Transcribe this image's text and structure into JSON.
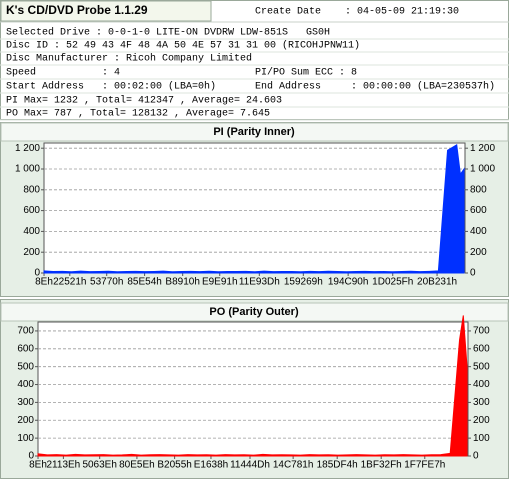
{
  "header": {
    "title": "K's CD/DVD Probe 1.1.29",
    "create_date_label": "Create Date",
    "create_date": ": 04-05-09 21:19:30",
    "lines": [
      [
        "Selected Drive : 0-0-1-0 LITE-ON DVDRW LDW-851S   GS0H"
      ],
      [
        "Disc ID : 52 49 43 4F 48 4A 50 4E 57 31 31 00 (RICOHJPNW11)"
      ],
      [
        "Disc Manufacturer : Ricoh Company Limited"
      ],
      [
        "Speed           : 4",
        "PI/PO Sum ECC : 8"
      ],
      [
        "Start Address   : 00:02:00 (LBA=0h)",
        "End Address     : 00:00:00 (LBA=230537h)"
      ],
      [
        "PI Max= 1232 , Total= 412347 , Average= 24.603"
      ],
      [
        "PO Max= 787 , Total= 128132 , Average= 7.645"
      ]
    ]
  },
  "chart_data": [
    {
      "type": "area",
      "title": "PI (Parity Inner)",
      "grid": true,
      "right_axis": true,
      "xlim": [
        0,
        2295095
      ],
      "ylim": [
        0,
        1250
      ],
      "yticks": [
        0,
        200,
        400,
        600,
        800,
        {
          "value": 1000,
          "label": "1 000"
        },
        {
          "value": 1200,
          "label": "1 200"
        }
      ],
      "xticks": [
        {
          "value": 142,
          "label": "8Eh"
        },
        {
          "value": 140577,
          "label": "22521h"
        },
        {
          "value": 341872,
          "label": "53770h"
        },
        {
          "value": 548436,
          "label": "85E54h"
        },
        {
          "value": 755984,
          "label": "B8910h"
        },
        {
          "value": 958097,
          "label": "E9E91h"
        },
        {
          "value": 1173821,
          "label": "11E93Dh"
        },
        {
          "value": 1413737,
          "label": "159269h"
        },
        {
          "value": 1658000,
          "label": "194C90h"
        },
        {
          "value": 1901151,
          "label": "1D025Fh"
        },
        {
          "value": 2142769,
          "label": "20B231h"
        }
      ],
      "series": [
        {
          "color": "#0030ff",
          "x": [
            0,
            50000,
            100000,
            150000,
            200000,
            250000,
            300000,
            350000,
            400000,
            450000,
            500000,
            550000,
            600000,
            650000,
            700000,
            750000,
            800000,
            850000,
            900000,
            950000,
            1000000,
            1050000,
            1100000,
            1150000,
            1200000,
            1250000,
            1300000,
            1350000,
            1400000,
            1450000,
            1500000,
            1550000,
            1600000,
            1650000,
            1700000,
            1750000,
            1800000,
            1850000,
            1900000,
            1950000,
            2000000,
            2050000,
            2100000,
            2150000,
            2200000,
            2250000,
            2270000,
            2290000
          ],
          "values": [
            20,
            14,
            16,
            12,
            18,
            13,
            15,
            17,
            12,
            14,
            16,
            13,
            15,
            18,
            12,
            14,
            16,
            13,
            17,
            12,
            15,
            14,
            16,
            12,
            18,
            13,
            15,
            14,
            12,
            16,
            13,
            17,
            14,
            12,
            15,
            16,
            13,
            14,
            12,
            15,
            17,
            13,
            16,
            20,
            1180,
            1232,
            950,
            1000
          ]
        }
      ]
    },
    {
      "type": "area",
      "title": "PO (Parity Outer)",
      "grid": true,
      "right_axis": true,
      "xlim": [
        0,
        2295095
      ],
      "ylim": [
        0,
        750
      ],
      "yticks": [
        0,
        100,
        200,
        300,
        400,
        500,
        600,
        700
      ],
      "xticks": [
        {
          "value": 142,
          "label": "8Eh"
        },
        {
          "value": 135486,
          "label": "2113Eh"
        },
        {
          "value": 329278,
          "label": "5063Eh"
        },
        {
          "value": 527966,
          "label": "80E5Eh"
        },
        {
          "value": 729173,
          "label": "B2055h"
        },
        {
          "value": 923192,
          "label": "E1638h"
        },
        {
          "value": 1131597,
          "label": "11444Dh"
        },
        {
          "value": 1361793,
          "label": "14C781h"
        },
        {
          "value": 1596916,
          "label": "185DF4h"
        },
        {
          "value": 1831727,
          "label": "1BF32Fh"
        },
        {
          "value": 2064359,
          "label": "1F7FE7h"
        }
      ],
      "series": [
        {
          "color": "#ff0000",
          "x": [
            0,
            50000,
            100000,
            150000,
            200000,
            250000,
            300000,
            350000,
            400000,
            450000,
            500000,
            550000,
            600000,
            650000,
            700000,
            750000,
            800000,
            850000,
            900000,
            950000,
            1000000,
            1050000,
            1100000,
            1150000,
            1200000,
            1250000,
            1300000,
            1350000,
            1400000,
            1450000,
            1500000,
            1550000,
            1600000,
            1650000,
            1700000,
            1750000,
            1800000,
            1850000,
            1900000,
            1950000,
            2000000,
            2050000,
            2100000,
            2150000,
            2200000,
            2250000,
            2270000,
            2290000
          ],
          "values": [
            12,
            6,
            8,
            5,
            9,
            6,
            7,
            8,
            5,
            6,
            9,
            5,
            7,
            8,
            6,
            5,
            8,
            6,
            7,
            5,
            8,
            6,
            7,
            5,
            9,
            6,
            7,
            6,
            5,
            8,
            6,
            7,
            5,
            6,
            8,
            6,
            5,
            7,
            6,
            8,
            6,
            5,
            7,
            8,
            15,
            650,
            787,
            500
          ]
        }
      ]
    }
  ]
}
